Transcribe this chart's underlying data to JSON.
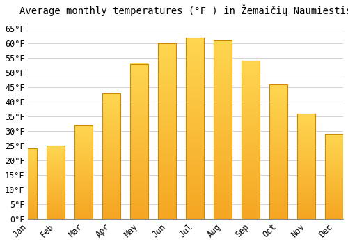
{
  "title": "Average monthly temperatures (°F ) in Žemaičių Naumiestis",
  "months": [
    "Jan",
    "Feb",
    "Mar",
    "Apr",
    "May",
    "Jun",
    "Jul",
    "Aug",
    "Sep",
    "Oct",
    "Nov",
    "Dec"
  ],
  "values": [
    24,
    25,
    32,
    43,
    53,
    60,
    62,
    61,
    54,
    46,
    36,
    29
  ],
  "bar_color_bottom": "#F5A623",
  "bar_color_top": "#FFD966",
  "bar_edge_color": "#CC8800",
  "background_color": "#FFFFFF",
  "grid_color": "#CCCCCC",
  "ylim": [
    0,
    68
  ],
  "yticks": [
    0,
    5,
    10,
    15,
    20,
    25,
    30,
    35,
    40,
    45,
    50,
    55,
    60,
    65
  ],
  "title_fontsize": 10,
  "tick_fontsize": 8.5,
  "bar_width": 0.65
}
